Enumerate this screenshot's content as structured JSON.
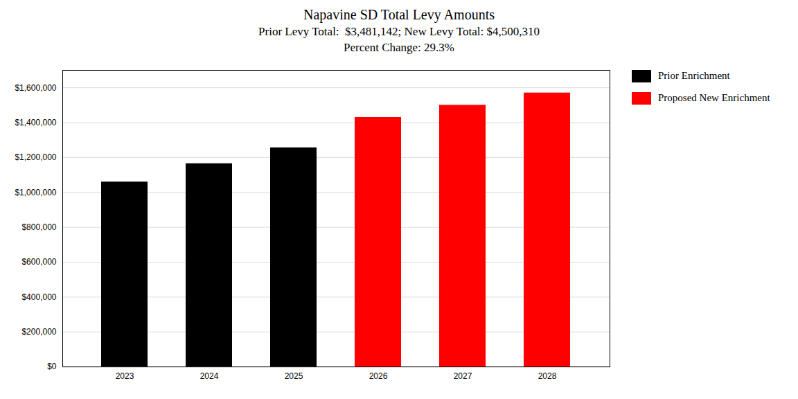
{
  "chart_data": {
    "type": "bar",
    "title": "Napavine SD Total Levy Amounts",
    "subtitle": [
      "Prior Levy Total:  $3,481,142; New Levy Total: $4,500,310",
      "Percent Change: 29.3%"
    ],
    "categories": [
      "2023",
      "2024",
      "2025",
      "2026",
      "2027",
      "2028"
    ],
    "series": [
      {
        "name": "Prior Enrichment",
        "color": "#000000",
        "values": [
          1060000,
          1165000,
          1256142,
          null,
          null,
          null
        ]
      },
      {
        "name": "Proposed New Enrichment",
        "color": "#ff0000",
        "values": [
          null,
          null,
          null,
          1430000,
          1500000,
          1570310
        ]
      }
    ],
    "ylim": [
      0,
      1700000
    ],
    "yticks": [
      {
        "value": 0,
        "label": "$0"
      },
      {
        "value": 200000,
        "label": "$200,000"
      },
      {
        "value": 400000,
        "label": "$400,000"
      },
      {
        "value": 600000,
        "label": "$600,000"
      },
      {
        "value": 800000,
        "label": "$800,000"
      },
      {
        "value": 1000000,
        "label": "$1,000,000"
      },
      {
        "value": 1200000,
        "label": "$1,200,000"
      },
      {
        "value": 1400000,
        "label": "$1,400,000"
      },
      {
        "value": 1600000,
        "label": "$1,600,000"
      }
    ],
    "grid": true,
    "legend": "right"
  }
}
